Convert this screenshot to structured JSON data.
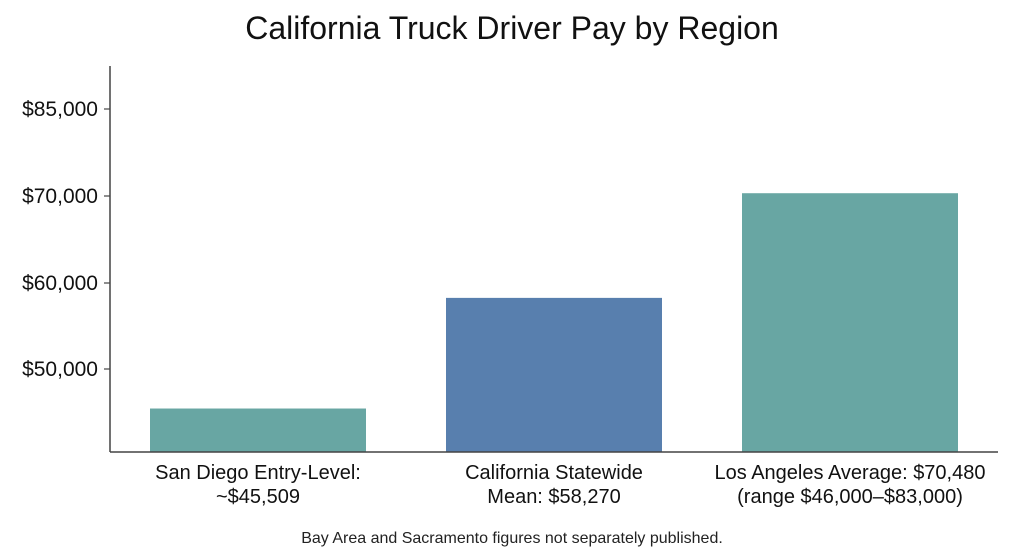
{
  "chart_data": {
    "type": "bar",
    "title": "California Truck Driver Pay by Region",
    "xlabel": "",
    "ylabel": "",
    "categories": [
      [
        "San Diego Entry-Level:",
        "~$45,509"
      ],
      [
        "California Statewide",
        "Mean: $58,270"
      ],
      [
        "Los Angeles Average: $70,480",
        "(range $46,000–$83,000)"
      ]
    ],
    "values": [
      45509,
      58270,
      70480
    ],
    "bar_colors": [
      "#68a6a3",
      "#587fae",
      "#68a6a3"
    ],
    "yticks": [
      {
        "value": 50000,
        "label": "$50,000"
      },
      {
        "value": 60000,
        "label": "$60,000"
      },
      {
        "value": 70000,
        "label": "$70,000"
      },
      {
        "value": 85000,
        "label": "$85,000"
      }
    ],
    "grid": false,
    "legend": "none",
    "footnote": "Bay Area and Sacramento figures not separately published."
  }
}
